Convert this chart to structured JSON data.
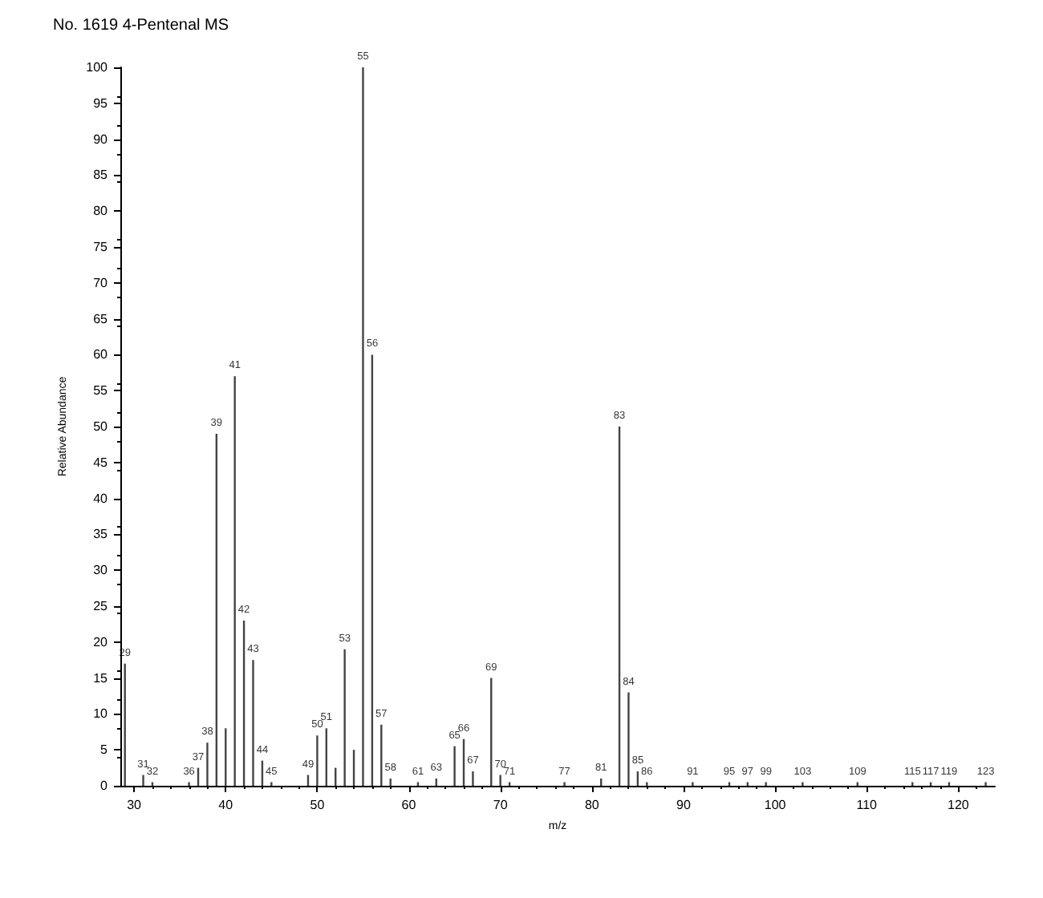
{
  "chart_data": {
    "type": "bar",
    "title": "No. 1619 4-Pentenal MS",
    "xlabel": "m/z",
    "ylabel": "Relative Abundance",
    "x": [
      29,
      31,
      32,
      36,
      37,
      38,
      39,
      40,
      41,
      42,
      43,
      44,
      45,
      49,
      50,
      51,
      52,
      53,
      54,
      55,
      56,
      57,
      58,
      61,
      63,
      65,
      66,
      67,
      69,
      70,
      71,
      77,
      81,
      83,
      84,
      85,
      86,
      91,
      95,
      97,
      99,
      103,
      109,
      115,
      117,
      119,
      123
    ],
    "values": [
      17,
      1.5,
      0.5,
      0.5,
      2.5,
      6,
      49,
      8,
      57,
      23,
      17.5,
      3.5,
      0.5,
      1.5,
      7,
      8,
      2.5,
      19,
      5,
      100,
      60,
      8.5,
      1,
      0.5,
      1,
      5.5,
      6.5,
      2,
      15,
      1.5,
      0.5,
      0.5,
      1,
      50,
      13,
      2,
      0.5,
      0.5,
      0.5,
      0.5,
      0.5,
      0.5,
      0.5,
      0.5,
      0.5,
      0.5,
      0.5
    ],
    "annotations": [
      {
        "text": "29",
        "x": 29,
        "y": 17
      },
      {
        "text": "31",
        "x": 31,
        "y": 1.5
      },
      {
        "text": "32",
        "x": 32,
        "y": 0.5
      },
      {
        "text": "36",
        "x": 36,
        "y": 0.5
      },
      {
        "text": "37",
        "x": 37,
        "y": 2.5
      },
      {
        "text": "38",
        "x": 38,
        "y": 6
      },
      {
        "text": "39",
        "x": 39,
        "y": 49
      },
      {
        "text": "41",
        "x": 41,
        "y": 57
      },
      {
        "text": "42",
        "x": 42,
        "y": 23
      },
      {
        "text": "43",
        "x": 43,
        "y": 17.5
      },
      {
        "text": "44",
        "x": 44,
        "y": 3.5
      },
      {
        "text": "45",
        "x": 45,
        "y": 0.5
      },
      {
        "text": "49",
        "x": 49,
        "y": 1.5
      },
      {
        "text": "50",
        "x": 50,
        "y": 7
      },
      {
        "text": "51",
        "x": 51,
        "y": 8
      },
      {
        "text": "53",
        "x": 53,
        "y": 19
      },
      {
        "text": "55",
        "x": 55,
        "y": 100
      },
      {
        "text": "56",
        "x": 56,
        "y": 60
      },
      {
        "text": "57",
        "x": 57,
        "y": 8.5
      },
      {
        "text": "58",
        "x": 58,
        "y": 1
      },
      {
        "text": "61",
        "x": 61,
        "y": 0.5
      },
      {
        "text": "63",
        "x": 63,
        "y": 1
      },
      {
        "text": "65",
        "x": 65,
        "y": 5.5
      },
      {
        "text": "66",
        "x": 66,
        "y": 6.5
      },
      {
        "text": "67",
        "x": 67,
        "y": 2
      },
      {
        "text": "69",
        "x": 69,
        "y": 15
      },
      {
        "text": "70",
        "x": 70,
        "y": 1.5
      },
      {
        "text": "71",
        "x": 71,
        "y": 0.5
      },
      {
        "text": "77",
        "x": 77,
        "y": 0.5
      },
      {
        "text": "81",
        "x": 81,
        "y": 1
      },
      {
        "text": "83",
        "x": 83,
        "y": 50
      },
      {
        "text": "84",
        "x": 84,
        "y": 13
      },
      {
        "text": "85",
        "x": 85,
        "y": 2
      },
      {
        "text": "86",
        "x": 86,
        "y": 0.5
      },
      {
        "text": "91",
        "x": 91,
        "y": 0.5
      },
      {
        "text": "95",
        "x": 95,
        "y": 0.5
      },
      {
        "text": "97",
        "x": 97,
        "y": 0.5
      },
      {
        "text": "99",
        "x": 99,
        "y": 0.5
      },
      {
        "text": "103",
        "x": 103,
        "y": 0.5
      },
      {
        "text": "109",
        "x": 109,
        "y": 0.5
      },
      {
        "text": "115",
        "x": 115,
        "y": 0.5
      },
      {
        "text": "117",
        "x": 117,
        "y": 0.5
      },
      {
        "text": "119",
        "x": 119,
        "y": 0.5
      },
      {
        "text": "123",
        "x": 123,
        "y": 0.5
      }
    ],
    "color": "#444444",
    "xlim": [
      28.5,
      124
    ],
    "xticks": [
      30,
      40,
      50,
      60,
      70,
      80,
      90,
      100,
      110,
      120
    ],
    "ylim": [
      0,
      100
    ],
    "yticks": [
      0,
      5,
      10,
      15,
      20,
      25,
      30,
      35,
      40,
      45,
      50,
      55,
      60,
      65,
      70,
      75,
      80,
      85,
      90,
      95,
      100
    ],
    "grid": false
  }
}
